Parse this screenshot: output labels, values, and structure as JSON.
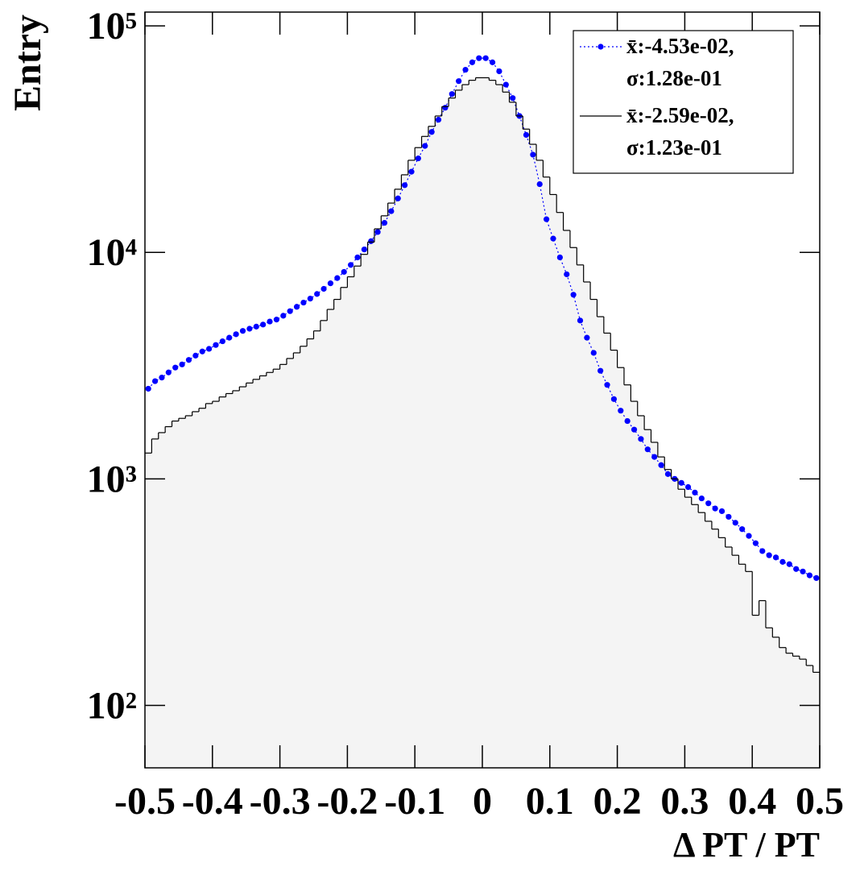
{
  "chart_data": {
    "type": "histogram",
    "xlabel": "Δ PT / PT",
    "ylabel": "Entry",
    "log_y": true,
    "bins": [
      -0.5,
      -0.49,
      -0.48,
      -0.47,
      -0.46,
      -0.45,
      -0.44,
      -0.43,
      -0.42,
      -0.41,
      -0.4,
      -0.39,
      -0.38,
      -0.37,
      -0.36,
      -0.35,
      -0.34,
      -0.33,
      -0.32,
      -0.31,
      -0.3,
      -0.29,
      -0.28,
      -0.27,
      -0.26,
      -0.25,
      -0.24,
      -0.23,
      -0.22,
      -0.21,
      -0.2,
      -0.19,
      -0.18,
      -0.17,
      -0.16,
      -0.15,
      -0.14,
      -0.13,
      -0.12,
      -0.11,
      -0.1,
      -0.09,
      -0.08,
      -0.07,
      -0.06,
      -0.05,
      -0.04,
      -0.03,
      -0.02,
      -0.01,
      0,
      0.01,
      0.02,
      0.03,
      0.04,
      0.05,
      0.06,
      0.07,
      0.08,
      0.09,
      0.1,
      0.11,
      0.12,
      0.13,
      0.14,
      0.15,
      0.16,
      0.17,
      0.18,
      0.19,
      0.2,
      0.21,
      0.22,
      0.23,
      0.24,
      0.25,
      0.26,
      0.27,
      0.28,
      0.29,
      0.3,
      0.31,
      0.32,
      0.33,
      0.34,
      0.35,
      0.36,
      0.37,
      0.38,
      0.39,
      0.4,
      0.41,
      0.42,
      0.43,
      0.44,
      0.45,
      0.46,
      0.47,
      0.48,
      0.49,
      0.5
    ],
    "series": [
      {
        "name": "x̄:-4.53e-02,\nσ:1.28e-01",
        "color": "#0000ff",
        "style": "dots",
        "values": [
          2500,
          2700,
          2800,
          2950,
          3100,
          3200,
          3350,
          3500,
          3650,
          3750,
          3900,
          4050,
          4200,
          4350,
          4500,
          4600,
          4700,
          4800,
          4950,
          5050,
          5250,
          5500,
          5750,
          6000,
          6250,
          6550,
          6900,
          7300,
          7700,
          8200,
          8800,
          9500,
          10300,
          11200,
          12300,
          13500,
          15200,
          17300,
          19800,
          22700,
          26000,
          29500,
          34000,
          38500,
          43500,
          50000,
          57000,
          64000,
          69000,
          72000,
          72000,
          69000,
          63000,
          55000,
          48000,
          40000,
          33000,
          27000,
          20000,
          14000,
          11500,
          9500,
          8000,
          6500,
          5000,
          4200,
          3600,
          3000,
          2600,
          2250,
          2000,
          1800,
          1650,
          1500,
          1350,
          1250,
          1150,
          1050,
          1000,
          960,
          920,
          870,
          820,
          780,
          740,
          720,
          680,
          640,
          600,
          560,
          520,
          480,
          460,
          450,
          430,
          420,
          400,
          390,
          375,
          365
        ]
      },
      {
        "name": "x̄:-2.59e-02,\nσ:1.23e-01",
        "color": "#000000",
        "style": "step",
        "values": [
          1300,
          1500,
          1600,
          1700,
          1800,
          1850,
          1900,
          1980,
          2050,
          2150,
          2200,
          2300,
          2380,
          2450,
          2550,
          2650,
          2750,
          2850,
          2950,
          3050,
          3200,
          3400,
          3600,
          3850,
          4150,
          4500,
          5000,
          5600,
          6200,
          7000,
          7800,
          8700,
          9800,
          11100,
          12700,
          14500,
          16500,
          19000,
          22000,
          25500,
          29000,
          32500,
          36000,
          40000,
          44000,
          48000,
          52000,
          55000,
          57500,
          59000,
          59000,
          57500,
          55000,
          51000,
          46000,
          40000,
          35000,
          30000,
          25500,
          21500,
          18000,
          15000,
          12500,
          10500,
          8800,
          7400,
          6200,
          5200,
          4400,
          3700,
          3100,
          2600,
          2200,
          1900,
          1650,
          1450,
          1250,
          1100,
          1000,
          900,
          830,
          770,
          710,
          650,
          600,
          550,
          500,
          460,
          420,
          390,
          250,
          290,
          220,
          200,
          180,
          170,
          165,
          160,
          150,
          140
        ]
      }
    ],
    "xlim": [
      -0.5,
      0.5
    ],
    "xticks": [
      -0.5,
      -0.4,
      -0.3,
      -0.2,
      -0.1,
      0,
      0.1,
      0.2,
      0.3,
      0.4,
      0.5
    ],
    "ylim": [
      53,
      115000
    ],
    "yticks": [
      {
        "value": 100,
        "label": "10²"
      },
      {
        "value": 1000,
        "label": "10³"
      },
      {
        "value": 10000,
        "label": "10⁴"
      },
      {
        "value": 100000,
        "label": "10⁵"
      }
    ],
    "legend": "upper right"
  }
}
